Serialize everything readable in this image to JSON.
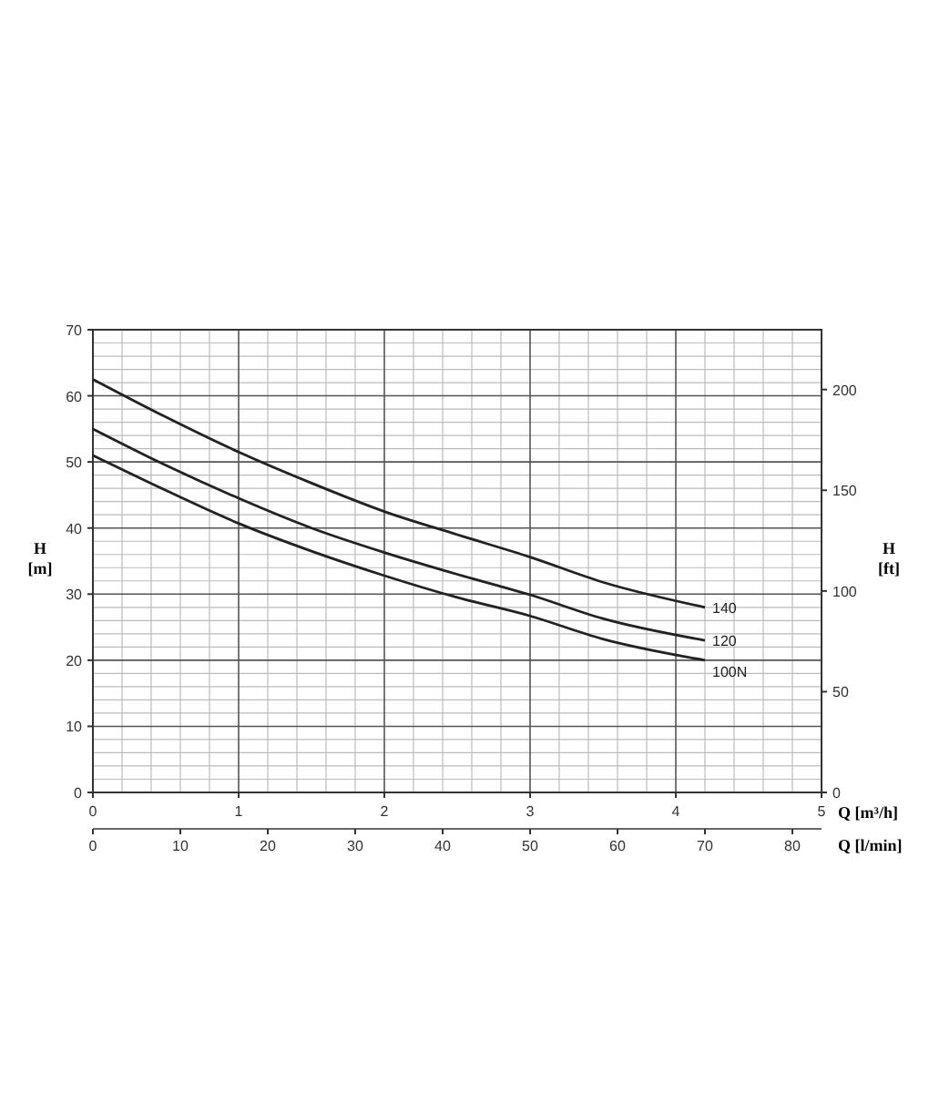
{
  "chart_data": {
    "type": "line",
    "xlabel": "Q [m³/h]",
    "ylabel": "H [m]",
    "y2label": "H [ft]",
    "x2label": "Q [l/min]",
    "xlim": [
      0,
      5
    ],
    "xticks": [
      0,
      1,
      2,
      3,
      4,
      5
    ],
    "ylim": [
      0,
      70
    ],
    "yticks": [
      0,
      10,
      20,
      30,
      40,
      50,
      60,
      70
    ],
    "y2lim": [
      0,
      229.7
    ],
    "y2ticks": [
      0,
      50,
      100,
      150,
      200
    ],
    "x2lim": [
      0,
      83.33
    ],
    "x2ticks": [
      0,
      10,
      20,
      30,
      40,
      50,
      60,
      70,
      80
    ],
    "grid": true,
    "marker": "none",
    "line_style": "solid",
    "series": [
      {
        "name": "140",
        "color": "#222222",
        "x": [
          0,
          0.5,
          1,
          1.5,
          2,
          2.5,
          3,
          3.5,
          4.2
        ],
        "values": [
          62.5,
          56.8,
          51.5,
          46.8,
          42.5,
          39,
          35.6,
          31.8,
          28
        ]
      },
      {
        "name": "120",
        "color": "#222222",
        "x": [
          0,
          0.5,
          1,
          1.5,
          2,
          2.5,
          3,
          3.5,
          4.2
        ],
        "values": [
          55,
          49.5,
          44.5,
          40,
          36.3,
          33,
          29.9,
          26.3,
          23
        ]
      },
      {
        "name": "100N",
        "color": "#222222",
        "x": [
          0,
          0.5,
          1,
          1.5,
          2,
          2.5,
          3,
          3.5,
          4.2
        ],
        "values": [
          51,
          45.7,
          40.7,
          36.5,
          32.8,
          29.5,
          26.7,
          23.2,
          20
        ]
      }
    ]
  }
}
